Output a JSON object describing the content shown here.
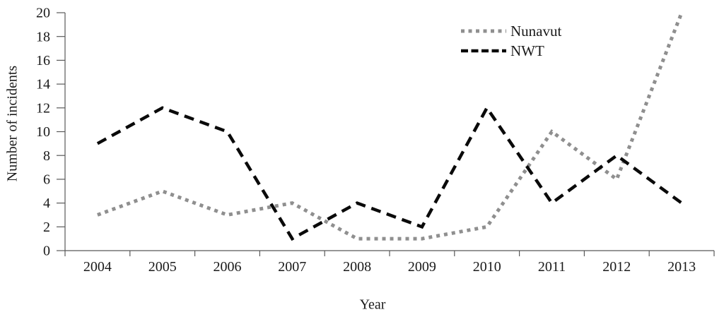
{
  "chart_data": {
    "type": "line",
    "title": "",
    "xlabel": "Year",
    "ylabel": "Number of incidents",
    "x": [
      "2004",
      "2005",
      "2006",
      "2007",
      "2008",
      "2009",
      "2010",
      "2011",
      "2012",
      "2013"
    ],
    "series": [
      {
        "name": "Nunavut",
        "values": [
          3,
          5,
          3,
          4,
          1,
          1,
          2,
          10,
          6,
          20
        ],
        "color": "#8f8f8f",
        "line_style": "dotted"
      },
      {
        "name": "NWT",
        "values": [
          9,
          12,
          10,
          1,
          4,
          2,
          12,
          4,
          8,
          4
        ],
        "color": "#0a0a0a",
        "line_style": "dashed"
      }
    ],
    "ylim": [
      0,
      20
    ],
    "yticks": [
      0,
      2,
      4,
      6,
      8,
      10,
      12,
      14,
      16,
      18,
      20
    ],
    "grid": false,
    "legend_position": "top-right-inside"
  },
  "colors": {
    "background": "#ffffff",
    "axis": "#595959",
    "text": "#1a1a1a",
    "nunavut_line": "#8f8f8f",
    "nwt_line": "#0a0a0a"
  }
}
